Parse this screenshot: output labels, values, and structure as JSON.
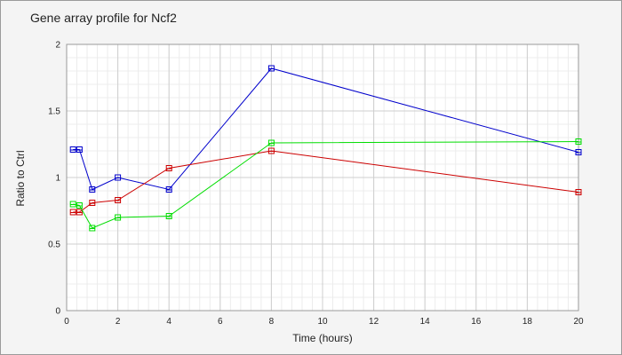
{
  "chart_data": {
    "type": "line",
    "title": "Gene array profile for Ncf2",
    "xlabel": "Time (hours)",
    "ylabel": "Ratio to Ctrl",
    "xlim": [
      0,
      20
    ],
    "ylim": [
      0,
      2
    ],
    "xticks": [
      0,
      2,
      4,
      6,
      8,
      10,
      12,
      14,
      16,
      18,
      20
    ],
    "yticks": [
      0,
      0.5,
      1,
      1.5,
      2
    ],
    "ytick_labels": [
      "0",
      "0.5",
      "1",
      "1.5",
      "2"
    ],
    "grid": true,
    "series": [
      {
        "color": "#0000cc",
        "x": [
          0.25,
          0.5,
          1,
          2,
          4,
          8,
          20
        ],
        "y": [
          1.21,
          1.21,
          0.91,
          1.0,
          0.91,
          1.82,
          1.19
        ]
      },
      {
        "color": "#cc0000",
        "x": [
          0.25,
          0.5,
          1,
          2,
          4,
          8,
          20
        ],
        "y": [
          0.74,
          0.74,
          0.81,
          0.83,
          1.07,
          1.2,
          0.89
        ]
      },
      {
        "color": "#00dd00",
        "x": [
          0.25,
          0.5,
          1,
          2,
          4,
          8,
          20
        ],
        "y": [
          0.8,
          0.79,
          0.62,
          0.7,
          0.71,
          1.26,
          1.27
        ]
      }
    ]
  }
}
